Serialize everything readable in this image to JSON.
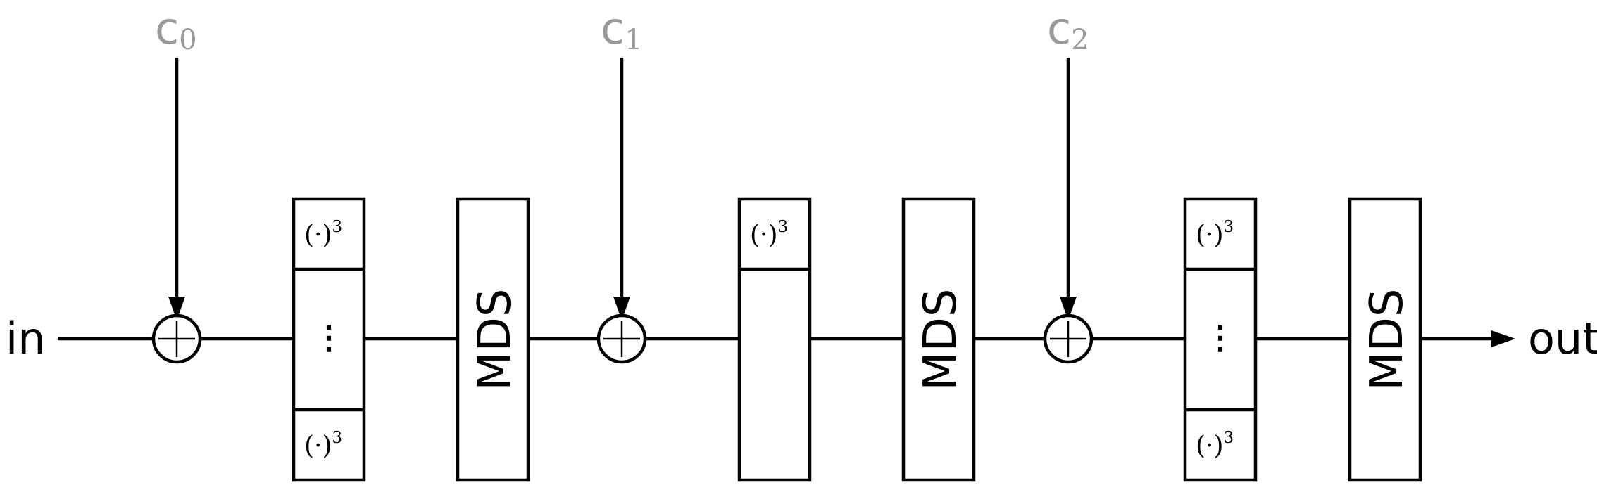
{
  "input_label": "in",
  "output_label": "out",
  "round_constants": [
    {
      "letter": "c",
      "index": "0"
    },
    {
      "letter": "c",
      "index": "1"
    },
    {
      "letter": "c",
      "index": "2"
    }
  ],
  "sbox_label": {
    "base": "(·)",
    "power": "3"
  },
  "ellipsis": "⋮",
  "mds_label": "MDS",
  "colors": {
    "stroke": "#000000",
    "constant_text": "#999999",
    "background": "#ffffff"
  }
}
